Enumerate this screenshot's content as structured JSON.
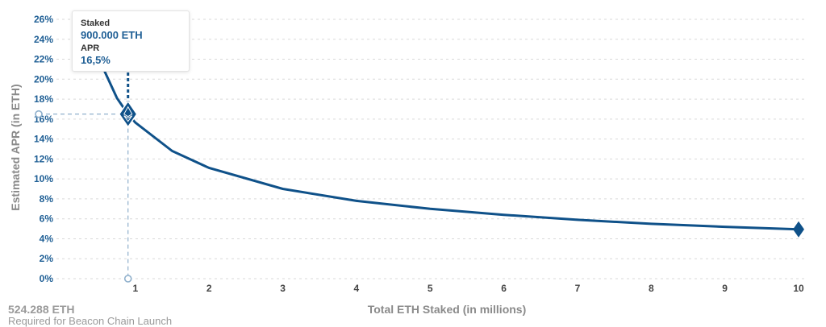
{
  "chart_data": {
    "type": "line",
    "ylabel": "Estimated APR (in ETH)",
    "xlabel": "Total ETH Staked  (in millions)",
    "ylim": [
      0,
      26
    ],
    "xlim": [
      0,
      10
    ],
    "y_ticks": [
      "0%",
      "2%",
      "4%",
      "6%",
      "8%",
      "10%",
      "12%",
      "14%",
      "16%",
      "18%",
      "20%",
      "22%",
      "24%",
      "26%"
    ],
    "x_ticks": [
      "1",
      "2",
      "3",
      "4",
      "5",
      "6",
      "7",
      "8",
      "9",
      "10"
    ],
    "grid": true,
    "series": [
      {
        "values_note": "APR ≈ 15.65 / sqrt(staked millions)",
        "x": [
          0.36,
          0.5,
          0.75,
          0.9,
          1,
          1.5,
          2,
          3,
          4,
          5,
          6,
          7,
          8,
          9,
          10
        ],
        "y": [
          26,
          22.1,
          18.1,
          16.5,
          15.65,
          12.8,
          11.1,
          9.0,
          7.8,
          7.0,
          6.4,
          5.9,
          5.5,
          5.2,
          4.95
        ]
      }
    ],
    "highlight": {
      "x": 0.9,
      "y": 16.5
    },
    "end_marker": {
      "x": 10,
      "y": 4.95
    }
  },
  "tooltip": {
    "staked_label": "Staked",
    "staked_value": "900.000 ETH",
    "apr_label": "APR",
    "apr_value": "16,5%"
  },
  "footer": {
    "launch_amount": "524.288 ETH",
    "launch_caption": "Required for Beacon Chain Launch"
  },
  "colors": {
    "curve": "#0f5189",
    "tick": "#1f5f95",
    "guide": "#8fb0cc"
  }
}
